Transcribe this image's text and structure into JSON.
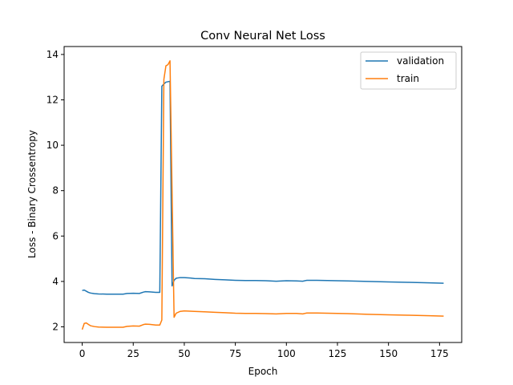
{
  "chart_data": {
    "type": "line",
    "title": "Conv Neural Net Loss",
    "xlabel": "Epoch",
    "ylabel": "Loss - Binary Crossentropy",
    "xlim": [
      -8.85,
      185.85
    ],
    "ylim": [
      1.31,
      14.35
    ],
    "xticks": [
      0,
      25,
      50,
      75,
      100,
      125,
      150,
      175
    ],
    "yticks": [
      2,
      4,
      6,
      8,
      10,
      12,
      14
    ],
    "grid": false,
    "legend_position": "top-right",
    "series": [
      {
        "name": "validation",
        "color": "#1f77b4",
        "points": [
          [
            0,
            3.6
          ],
          [
            1,
            3.62
          ],
          [
            2,
            3.57
          ],
          [
            3,
            3.52
          ],
          [
            4,
            3.49
          ],
          [
            6,
            3.46
          ],
          [
            8,
            3.45
          ],
          [
            12,
            3.44
          ],
          [
            16,
            3.44
          ],
          [
            20,
            3.44
          ],
          [
            22,
            3.47
          ],
          [
            25,
            3.48
          ],
          [
            28,
            3.47
          ],
          [
            30,
            3.53
          ],
          [
            31,
            3.55
          ],
          [
            33,
            3.54
          ],
          [
            36,
            3.52
          ],
          [
            38,
            3.52
          ],
          [
            39,
            12.6
          ],
          [
            40,
            12.7
          ],
          [
            41,
            12.78
          ],
          [
            43,
            12.82
          ],
          [
            44,
            3.8
          ],
          [
            45,
            4.05
          ],
          [
            46,
            4.14
          ],
          [
            48,
            4.17
          ],
          [
            50,
            4.17
          ],
          [
            53,
            4.15
          ],
          [
            55,
            4.13
          ],
          [
            60,
            4.12
          ],
          [
            65,
            4.09
          ],
          [
            70,
            4.07
          ],
          [
            75,
            4.05
          ],
          [
            80,
            4.04
          ],
          [
            85,
            4.04
          ],
          [
            90,
            4.03
          ],
          [
            95,
            4.01
          ],
          [
            100,
            4.03
          ],
          [
            105,
            4.02
          ],
          [
            108,
            4.01
          ],
          [
            110,
            4.05
          ],
          [
            115,
            4.05
          ],
          [
            120,
            4.04
          ],
          [
            130,
            4.02
          ],
          [
            140,
            4.0
          ],
          [
            150,
            3.98
          ],
          [
            160,
            3.96
          ],
          [
            170,
            3.94
          ],
          [
            177,
            3.92
          ]
        ]
      },
      {
        "name": "train",
        "color": "#ff7f0e",
        "points": [
          [
            0,
            1.88
          ],
          [
            1,
            2.15
          ],
          [
            2,
            2.17
          ],
          [
            3,
            2.11
          ],
          [
            4,
            2.05
          ],
          [
            6,
            2.01
          ],
          [
            8,
            1.99
          ],
          [
            12,
            1.98
          ],
          [
            16,
            1.98
          ],
          [
            20,
            1.98
          ],
          [
            22,
            2.02
          ],
          [
            25,
            2.04
          ],
          [
            28,
            2.03
          ],
          [
            30,
            2.1
          ],
          [
            31,
            2.12
          ],
          [
            33,
            2.11
          ],
          [
            36,
            2.08
          ],
          [
            38,
            2.08
          ],
          [
            39,
            2.3
          ],
          [
            40,
            12.9
          ],
          [
            41,
            13.5
          ],
          [
            42,
            13.55
          ],
          [
            43,
            13.72
          ],
          [
            44,
            8.0
          ],
          [
            45,
            2.42
          ],
          [
            46,
            2.6
          ],
          [
            48,
            2.68
          ],
          [
            50,
            2.7
          ],
          [
            53,
            2.69
          ],
          [
            55,
            2.68
          ],
          [
            60,
            2.66
          ],
          [
            65,
            2.64
          ],
          [
            70,
            2.62
          ],
          [
            75,
            2.6
          ],
          [
            80,
            2.59
          ],
          [
            85,
            2.59
          ],
          [
            90,
            2.58
          ],
          [
            95,
            2.57
          ],
          [
            100,
            2.59
          ],
          [
            105,
            2.59
          ],
          [
            108,
            2.57
          ],
          [
            110,
            2.61
          ],
          [
            115,
            2.61
          ],
          [
            120,
            2.6
          ],
          [
            130,
            2.58
          ],
          [
            140,
            2.55
          ],
          [
            150,
            2.53
          ],
          [
            160,
            2.51
          ],
          [
            170,
            2.49
          ],
          [
            177,
            2.47
          ]
        ]
      }
    ]
  }
}
